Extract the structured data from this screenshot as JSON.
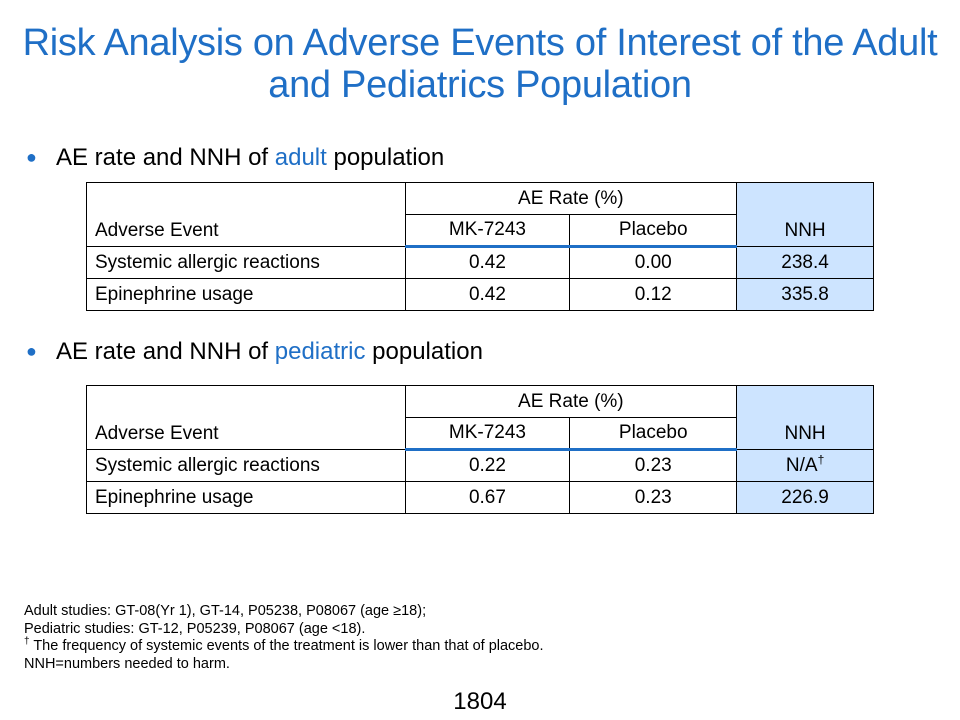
{
  "title": "Risk Analysis on Adverse Events of Interest of the Adult and Pediatrics Population",
  "bullet1": {
    "prefix": "AE rate and NNH of ",
    "highlight": "adult",
    "suffix": " population"
  },
  "bullet2": {
    "prefix": "AE rate and NNH of ",
    "highlight": "pediatric",
    "suffix": " population"
  },
  "bullet_glyph": "●",
  "tables": [
    {
      "col_adverse_event": "Adverse Event",
      "group_header": "AE Rate (%)",
      "col_drug": "MK-7243",
      "col_placebo": "Placebo",
      "col_nnh": "NNH",
      "rows": [
        {
          "event": "Systemic allergic reactions",
          "drug": "0.42",
          "placebo": "0.00",
          "nnh": "238.4",
          "nnh_mark": ""
        },
        {
          "event": "Epinephrine usage",
          "drug": "0.42",
          "placebo": "0.12",
          "nnh": "335.8",
          "nnh_mark": ""
        }
      ]
    },
    {
      "col_adverse_event": "Adverse Event",
      "group_header": "AE Rate (%)",
      "col_drug": "MK-7243",
      "col_placebo": "Placebo",
      "col_nnh": "NNH",
      "rows": [
        {
          "event": "Systemic allergic reactions",
          "drug": "0.22",
          "placebo": "0.23",
          "nnh": "N/A",
          "nnh_mark": "†"
        },
        {
          "event": "Epinephrine usage",
          "drug": "0.67",
          "placebo": "0.23",
          "nnh": "226.9",
          "nnh_mark": ""
        }
      ]
    }
  ],
  "footnotes": {
    "line1": "Adult studies: GT-08(Yr 1), GT-14, P05238, P08067 (age ≥18);",
    "line2": "Pediatric studies: GT-12, P05239, P08067 (age <18).",
    "dagger": "†",
    "line3": " The frequency of systemic events of the treatment is lower than that of placebo.",
    "line4": "NNH=numbers needed to harm."
  },
  "page_number": "1804",
  "colors": {
    "accent": "#1f6fc6",
    "nnh_fill": "#cde4ff"
  }
}
